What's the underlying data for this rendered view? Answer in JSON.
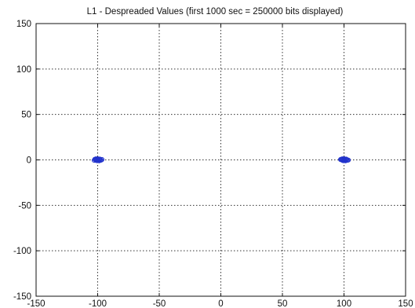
{
  "chart_data": {
    "type": "scatter",
    "title": "L1 - Despreaded Values (first 1000 sec = 250000 bits displayed)",
    "xlabel": "",
    "ylabel": "",
    "xlim": [
      -150,
      150
    ],
    "ylim": [
      -150,
      150
    ],
    "xticks": [
      -150,
      -100,
      -50,
      0,
      50,
      100,
      150
    ],
    "yticks": [
      -150,
      -100,
      -50,
      0,
      50,
      100,
      150
    ],
    "grid": true,
    "series": [
      {
        "color": "#2233cc",
        "points": [
          [
            -101,
            0
          ],
          [
            -100,
            0.8
          ],
          [
            -99,
            -0.6
          ],
          [
            -102,
            0.3
          ],
          [
            -98.5,
            0.5
          ],
          [
            -100.5,
            -0.9
          ],
          [
            -99.5,
            1.1
          ],
          [
            -101.5,
            -0.4
          ],
          [
            -97.8,
            0.1
          ],
          [
            -102.3,
            0.7
          ],
          [
            -100.2,
            0.2
          ],
          [
            -98.8,
            -1.0
          ],
          [
            -101.2,
            1.2
          ],
          [
            -99.7,
            -0.2
          ],
          [
            -97.2,
            -0.3
          ],
          [
            -96.5,
            0.4
          ],
          [
            -102.8,
            -0.5
          ],
          [
            -100.8,
            0.6
          ],
          [
            -98.2,
            0.9
          ],
          [
            -99.2,
            0.0
          ],
          [
            99,
            0
          ],
          [
            100,
            0.8
          ],
          [
            101,
            -0.6
          ],
          [
            98,
            0.3
          ],
          [
            101.5,
            0.5
          ],
          [
            99.5,
            -0.9
          ],
          [
            100.5,
            1.1
          ],
          [
            98.5,
            -0.4
          ],
          [
            102.2,
            0.1
          ],
          [
            97.7,
            0.7
          ],
          [
            99.8,
            0.2
          ],
          [
            101.2,
            -1.0
          ],
          [
            98.8,
            1.2
          ],
          [
            100.3,
            -0.2
          ],
          [
            102.8,
            -0.3
          ],
          [
            97.2,
            0.4
          ],
          [
            103.5,
            -0.2
          ],
          [
            99.2,
            0.6
          ],
          [
            101.8,
            0.9
          ],
          [
            100.8,
            0.0
          ]
        ]
      }
    ]
  }
}
